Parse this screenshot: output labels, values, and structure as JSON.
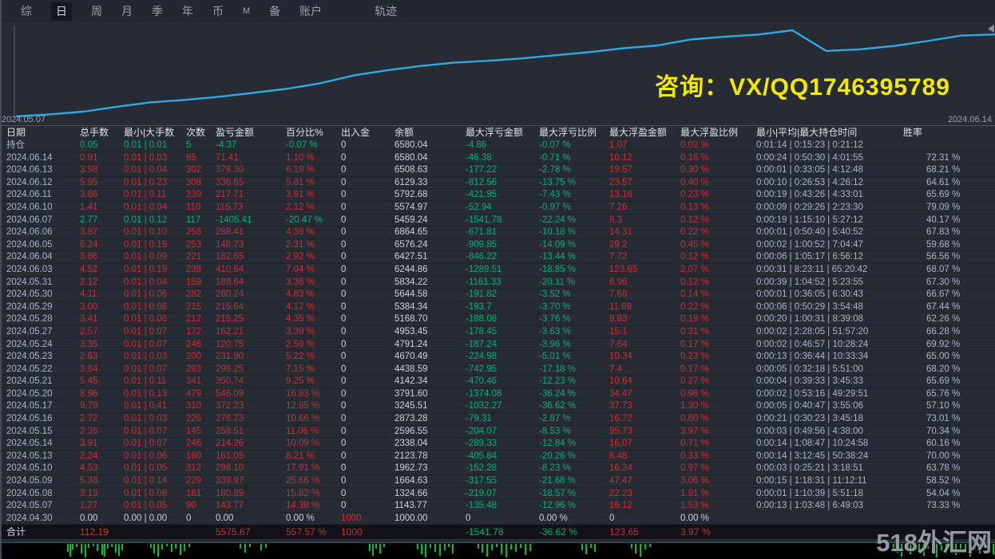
{
  "nav": {
    "items": [
      {
        "label": "综",
        "active": false
      },
      {
        "label": "日",
        "active": true
      },
      {
        "label": "周",
        "active": false
      },
      {
        "label": "月",
        "active": false
      },
      {
        "label": "季",
        "active": false
      },
      {
        "label": "年",
        "active": false
      },
      {
        "label": "币",
        "active": false
      },
      {
        "label": "M",
        "active": false,
        "small": true
      },
      {
        "label": "备",
        "active": false
      },
      {
        "label": "账户",
        "active": false
      },
      {
        "label": "轨迹",
        "active": false,
        "spaced": true
      }
    ]
  },
  "chart": {
    "start_date": "2024.05.07",
    "end_date": "2024.06.14",
    "watermark": "咨询：VX/QQ1746395789",
    "line_color": "#2FA9E2"
  },
  "chart_data": {
    "type": "line",
    "title": "账户余额曲线",
    "xlabel": "",
    "ylabel": "余额",
    "ylim": [
      1000,
      6864.65
    ],
    "x": [
      "2024.04.30",
      "2024.05.07",
      "2024.05.08",
      "2024.05.09",
      "2024.05.10",
      "2024.05.13",
      "2024.05.14",
      "2024.05.15",
      "2024.05.16",
      "2024.05.17",
      "2024.05.20",
      "2024.05.21",
      "2024.05.22",
      "2024.05.23",
      "2024.05.24",
      "2024.05.27",
      "2024.05.28",
      "2024.05.29",
      "2024.05.30",
      "2024.05.31",
      "2024.06.03",
      "2024.06.04",
      "2024.06.05",
      "2024.06.06",
      "2024.06.07",
      "2024.06.10",
      "2024.06.11",
      "2024.06.12",
      "2024.06.13",
      "2024.06.14"
    ],
    "series": [
      {
        "name": "余额",
        "values": [
          1000.0,
          1143.77,
          1324.66,
          1664.63,
          1962.73,
          2123.78,
          2338.04,
          2596.55,
          2873.28,
          3245.51,
          3791.6,
          4142.34,
          4438.59,
          4670.49,
          4791.24,
          4953.45,
          5168.7,
          5384.34,
          5644.58,
          5834.22,
          6244.86,
          6427.51,
          6576.24,
          6864.65,
          5459.24,
          5574.97,
          5792.68,
          6129.33,
          6508.63,
          6580.04
        ]
      }
    ],
    "legend_position": "none",
    "grid": false
  },
  "table": {
    "headers": [
      "日期",
      "总手数",
      "最小|大手数",
      "次数",
      "盈亏金额",
      "百分比%",
      "出入金",
      "余额",
      "最大浮亏金额",
      "最大浮亏比例",
      "最大浮盈金额",
      "最大浮盈比例",
      "最小|平均|最大持仓时间",
      "胜率"
    ],
    "rows": [
      {
        "tone": "green",
        "cells": [
          "持仓",
          "0.05",
          "0.01 | 0.01",
          "5",
          "-4.37",
          "-0.07 %",
          "0",
          "6580.04",
          "-4.86",
          "-0.07 %",
          "1.07",
          "0.02 %",
          "0:01:14 | 0:15:23 | 0:21:12",
          ""
        ]
      },
      {
        "tone": "red",
        "cells": [
          "2024.06.14",
          "0.91",
          "0.01 | 0.03",
          "65",
          "71.41",
          "1.10 %",
          "0",
          "6580.04",
          "-46.38",
          "-0.71 %",
          "10.12",
          "0.16 %",
          "0:00:24 | 0:50:30 | 4:01:55",
          "72.31 %"
        ]
      },
      {
        "tone": "red",
        "cells": [
          "2024.06.13",
          "3.98",
          "0.01 | 0.04",
          "302",
          "379.30",
          "6.19 %",
          "0",
          "6508.63",
          "-177.22",
          "-2.78 %",
          "19.57",
          "0.30 %",
          "0:00:01 | 0:33:05 | 4:12:48",
          "68.21 %"
        ]
      },
      {
        "tone": "red",
        "cells": [
          "2024.06.12",
          "5.95",
          "0.01 | 0.23",
          "308",
          "336.65",
          "5.81 %",
          "0",
          "6129.33",
          "-812.56",
          "-13.75 %",
          "23.57",
          "0.40 %",
          "0:00:10 | 0:26:53 | 4:26:12",
          "64.61 %"
        ]
      },
      {
        "tone": "red",
        "cells": [
          "2024.06.11",
          "3.86",
          "0.01 | 0.11",
          "239",
          "217.71",
          "3.91 %",
          "0",
          "5792.68",
          "-421.95",
          "-7.43 %",
          "13.16",
          "0.23 %",
          "0:00:19 | 0:43:26 | 4:33:01",
          "65.69 %"
        ]
      },
      {
        "tone": "red",
        "cells": [
          "2024.06.10",
          "1.41",
          "0.01 | 0.04",
          "110",
          "115.73",
          "2.12 %",
          "0",
          "5574.97",
          "-52.94",
          "-0.97 %",
          "7.26",
          "0.13 %",
          "0:00:09 | 0:29:26 | 2:23:30",
          "79.09 %"
        ]
      },
      {
        "tone": "green",
        "cells": [
          "2024.06.07",
          "2.77",
          "0.01 | 0.12",
          "117",
          "-1405.41",
          "-20.47 %",
          "0",
          "5459.24",
          "-1541.78",
          "-22.24 %",
          "8.3",
          "0.12 %",
          "0:00:19 | 1:15:10 | 5:27:12",
          "40.17 %"
        ]
      },
      {
        "tone": "red",
        "cells": [
          "2024.06.06",
          "3.87",
          "0.01 | 0.10",
          "258",
          "288.41",
          "4.39 %",
          "0",
          "6864.65",
          "-671.81",
          "-10.18 %",
          "14.31",
          "0.22 %",
          "0:00:01 | 0:50:40 | 5:40:52",
          "67.83 %"
        ]
      },
      {
        "tone": "red",
        "cells": [
          "2024.06.05",
          "6.24",
          "0.01 | 0.19",
          "253",
          "148.73",
          "2.31 %",
          "0",
          "6576.24",
          "-909.85",
          "-14.09 %",
          "29.2",
          "0.45 %",
          "0:00:02 | 1:00:52 | 7:04:47",
          "59.68 %"
        ]
      },
      {
        "tone": "red",
        "cells": [
          "2024.06.04",
          "3.86",
          "0.01 | 0.09",
          "221",
          "182.65",
          "2.92 %",
          "0",
          "6427.51",
          "-846.22",
          "-13.44 %",
          "7.72",
          "0.12 %",
          "0:00:06 | 1:05:17 | 6:56:12",
          "56.56 %"
        ]
      },
      {
        "tone": "red",
        "cells": [
          "2024.06.03",
          "4.52",
          "0.01 | 0.19",
          "238",
          "410.64",
          "7.04 %",
          "0",
          "6244.86",
          "-1289.51",
          "-18.85 %",
          "123.65",
          "2.07 %",
          "0:00:31 | 8:23:11 | 65:20:42",
          "68.07 %"
        ]
      },
      {
        "tone": "red",
        "cells": [
          "2024.05.31",
          "2.12",
          "0.01 | 0.04",
          "159",
          "189.64",
          "3.36 %",
          "0",
          "5834.22",
          "-1161.33",
          "-20.11 %",
          "6.96",
          "0.12 %",
          "0:00:39 | 1:04:52 | 5:23:55",
          "67.30 %"
        ]
      },
      {
        "tone": "red",
        "cells": [
          "2024.05.30",
          "4.11",
          "0.01 | 0.06",
          "282",
          "260.24",
          "4.83 %",
          "0",
          "5644.58",
          "-191.82",
          "-3.52 %",
          "7.68",
          "0.14 %",
          "0:00:01 | 0:36:05 | 6:30:43",
          "66.67 %"
        ]
      },
      {
        "tone": "red",
        "cells": [
          "2024.05.29",
          "3.00",
          "0.01 | 0.06",
          "215",
          "215.64",
          "4.17 %",
          "0",
          "5384.34",
          "-193.7",
          "-3.70 %",
          "11.69",
          "0.22 %",
          "0:00:06 | 0:50:29 | 3:54:48",
          "67.44 %"
        ]
      },
      {
        "tone": "red",
        "cells": [
          "2024.05.28",
          "3.41",
          "0.01 | 0.06",
          "212",
          "215.25",
          "4.35 %",
          "0",
          "5168.70",
          "-188.08",
          "-3.76 %",
          "9.83",
          "0.19 %",
          "0:00:20 | 1:00:31 | 8:39:08",
          "62.26 %"
        ]
      },
      {
        "tone": "red",
        "cells": [
          "2024.05.27",
          "2.57",
          "0.01 | 0.07",
          "172",
          "162.21",
          "3.39 %",
          "0",
          "4953.45",
          "-178.45",
          "-3.63 %",
          "15.1",
          "0.31 %",
          "0:00:02 | 2:28:05 | 51:57:20",
          "66.28 %"
        ]
      },
      {
        "tone": "red",
        "cells": [
          "2024.05.24",
          "3.35",
          "0.01 | 0.07",
          "246",
          "120.75",
          "2.59 %",
          "0",
          "4791.24",
          "-187.24",
          "-3.96 %",
          "7.64",
          "0.17 %",
          "0:00:02 | 0:46:57 | 10:28:24",
          "69.92 %"
        ]
      },
      {
        "tone": "red",
        "cells": [
          "2024.05.23",
          "2.63",
          "0.01 | 0.03",
          "200",
          "231.90",
          "5.22 %",
          "0",
          "4670.49",
          "-224.98",
          "-5.01 %",
          "10.34",
          "0.23 %",
          "0:00:13 | 0:36:44 | 10:33:34",
          "65.00 %"
        ]
      },
      {
        "tone": "red",
        "cells": [
          "2024.05.22",
          "3.84",
          "0.01 | 0.07",
          "283",
          "296.25",
          "7.15 %",
          "0",
          "4438.59",
          "-742.95",
          "-17.18 %",
          "7.4",
          "0.17 %",
          "0:00:05 | 0:32:18 | 5:51:00",
          "68.20 %"
        ]
      },
      {
        "tone": "red",
        "cells": [
          "2024.05.21",
          "5.45",
          "0.01 | 0.11",
          "341",
          "350.74",
          "9.25 %",
          "0",
          "4142.34",
          "-470.46",
          "-12.23 %",
          "10.64",
          "0.27 %",
          "0:00:04 | 0:39:33 | 3:45:33",
          "65.69 %"
        ]
      },
      {
        "tone": "red",
        "cells": [
          "2024.05.20",
          "8.96",
          "0.01 | 0.13",
          "479",
          "546.09",
          "16.83 %",
          "0",
          "3791.60",
          "-1374.08",
          "-36.24 %",
          "34.47",
          "0.96 %",
          "0:00:02 | 0:53:16 | 49:29:51",
          "65.76 %"
        ]
      },
      {
        "tone": "red",
        "cells": [
          "2024.05.17",
          "9.79",
          "0.01 | 0.41",
          "310",
          "372.23",
          "12.95 %",
          "0",
          "3245.51",
          "-1032.27",
          "-36.62 %",
          "37.73",
          "1.30 %",
          "0:00:05 | 0:40:47 | 3:55:06",
          "57.10 %"
        ]
      },
      {
        "tone": "red",
        "cells": [
          "2024.05.16",
          "2.72",
          "0.01 | 0.03",
          "226",
          "276.73",
          "10.66 %",
          "0",
          "2873.28",
          "-79.31",
          "-2.87 %",
          "16.72",
          "0.60 %",
          "0:00:21 | 0:30:23 | 3:45:18",
          "73.01 %"
        ]
      },
      {
        "tone": "red",
        "cells": [
          "2024.05.15",
          "2.36",
          "0.01 | 0.07",
          "145",
          "258.51",
          "11.06 %",
          "0",
          "2596.55",
          "-204.07",
          "-8.53 %",
          "95.73",
          "3.97 %",
          "0:00:03 | 0:49:56 | 4:38:00",
          "70.34 %"
        ]
      },
      {
        "tone": "red",
        "cells": [
          "2024.05.14",
          "3.91",
          "0.01 | 0.07",
          "246",
          "214.26",
          "10.09 %",
          "0",
          "2338.04",
          "-289.33",
          "-12.84 %",
          "16.07",
          "0.71 %",
          "0:00:14 | 1:08:47 | 10:24:58",
          "60.16 %"
        ]
      },
      {
        "tone": "red",
        "cells": [
          "2024.05.13",
          "2.24",
          "0.01 | 0.06",
          "160",
          "161.05",
          "8.21 %",
          "0",
          "2123.78",
          "-405.84",
          "-20.26 %",
          "6.48",
          "0.33 %",
          "0:00:14 | 3:12:45 | 50:38:24",
          "70.00 %"
        ]
      },
      {
        "tone": "red",
        "cells": [
          "2024.05.10",
          "4.53",
          "0.01 | 0.05",
          "312",
          "298.10",
          "17.91 %",
          "0",
          "1962.73",
          "-152.28",
          "-8.23 %",
          "16.34",
          "0.97 %",
          "0:00:03 | 0:25:21 | 3:18:51",
          "63.78 %"
        ]
      },
      {
        "tone": "red",
        "cells": [
          "2024.05.09",
          "5.38",
          "0.01 | 0.14",
          "229",
          "339.97",
          "25.66 %",
          "0",
          "1664.63",
          "-317.55",
          "-21.68 %",
          "47.47",
          "3.06 %",
          "0:00:15 | 1:18:31 | 11:12:11",
          "58.52 %"
        ]
      },
      {
        "tone": "red",
        "cells": [
          "2024.05.08",
          "3.13",
          "0.01 | 0.08",
          "161",
          "180.89",
          "15.82 %",
          "0",
          "1324.66",
          "-219.07",
          "-18.57 %",
          "22.23",
          "1.91 %",
          "0:00:01 | 1:10:39 | 5:51:18",
          "54.04 %"
        ]
      },
      {
        "tone": "red",
        "cells": [
          "2024.05.07",
          "1.27",
          "0.01 | 0.05",
          "90",
          "143.77",
          "14.38 %",
          "0",
          "1143.77",
          "-135.48",
          "-12.96 %",
          "16.12",
          "1.53 %",
          "0:00:13 | 1:03:48 | 6:49:03",
          "73.33 %"
        ]
      },
      {
        "tone": "flat",
        "cells": [
          "2024.04.30",
          "0.00",
          "0.00 | 0.00",
          "0",
          "0.00",
          "0.00 %",
          "1000",
          "1000.00",
          "0",
          "0.00 %",
          "0",
          "0.00 %",
          "",
          ""
        ]
      }
    ],
    "total_row": {
      "tone": "red",
      "cells": [
        "合计",
        "112.19",
        "",
        "",
        "5575.67",
        "557.57 %",
        "1000",
        "",
        "-1541.78",
        "-36.62 %",
        "123.65",
        "3.97 %",
        "",
        ""
      ]
    }
  },
  "footer": {
    "watermark": "518外汇网",
    "bar_color": "#00C22C",
    "bars": [
      [
        84,
        10
      ],
      [
        87,
        16
      ],
      [
        90,
        7
      ],
      [
        95,
        4
      ],
      [
        101,
        12
      ],
      [
        106,
        17
      ],
      [
        110,
        5
      ],
      [
        116,
        3
      ],
      [
        121,
        9
      ],
      [
        127,
        14
      ],
      [
        130,
        16
      ],
      [
        134,
        6
      ],
      [
        139,
        4
      ],
      [
        144,
        11
      ],
      [
        148,
        15
      ],
      [
        152,
        8
      ],
      [
        188,
        5
      ],
      [
        192,
        12
      ],
      [
        197,
        16
      ],
      [
        202,
        7
      ],
      [
        208,
        3
      ],
      [
        214,
        10
      ],
      [
        219,
        6
      ],
      [
        225,
        14
      ],
      [
        230,
        9
      ],
      [
        236,
        4
      ],
      [
        300,
        6
      ],
      [
        306,
        11
      ],
      [
        312,
        4
      ],
      [
        326,
        8
      ],
      [
        332,
        5
      ],
      [
        462,
        9
      ],
      [
        466,
        15
      ],
      [
        470,
        6
      ],
      [
        475,
        12
      ],
      [
        480,
        4
      ],
      [
        522,
        7
      ],
      [
        527,
        13
      ],
      [
        532,
        17
      ],
      [
        538,
        5
      ],
      [
        544,
        10
      ],
      [
        550,
        15
      ],
      [
        556,
        8
      ],
      [
        561,
        4
      ],
      [
        566,
        12
      ],
      [
        598,
        6
      ],
      [
        603,
        11
      ],
      [
        609,
        16
      ],
      [
        615,
        8
      ],
      [
        621,
        4
      ],
      [
        627,
        13
      ],
      [
        633,
        17
      ],
      [
        639,
        7
      ],
      [
        645,
        10
      ],
      [
        651,
        5
      ],
      [
        657,
        14
      ],
      [
        663,
        9
      ],
      [
        728,
        8
      ],
      [
        733,
        13
      ],
      [
        739,
        5
      ],
      [
        744,
        10
      ],
      [
        790,
        6
      ],
      [
        795,
        12
      ],
      [
        801,
        16
      ],
      [
        807,
        7
      ],
      [
        813,
        4
      ],
      [
        1118,
        5
      ],
      [
        1123,
        11
      ],
      [
        1128,
        16
      ],
      [
        1133,
        7
      ],
      [
        1139,
        13
      ],
      [
        1144,
        4
      ],
      [
        1150,
        9
      ],
      [
        1156,
        15
      ],
      [
        1161,
        6
      ],
      [
        1167,
        12
      ],
      [
        1172,
        17
      ],
      [
        1178,
        8
      ],
      [
        1184,
        5
      ],
      [
        1190,
        11
      ],
      [
        1196,
        14
      ],
      [
        1202,
        6
      ],
      [
        1208,
        10
      ],
      [
        1214,
        16
      ],
      [
        1220,
        7
      ],
      [
        1226,
        12
      ],
      [
        1232,
        5
      ],
      [
        1238,
        9
      ],
      [
        1243,
        13
      ]
    ]
  }
}
